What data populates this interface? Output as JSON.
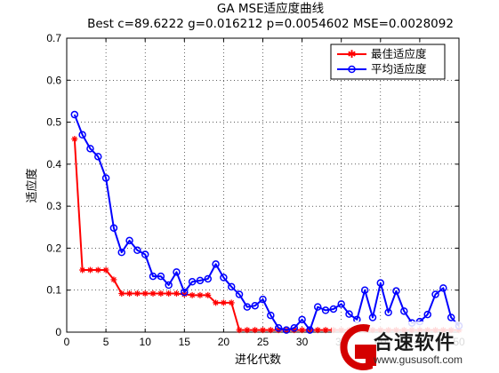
{
  "chart_data": {
    "type": "line",
    "title_line1": "GA MSE适应度曲线",
    "title_line2": "Best c=89.6222 g=0.016212 p=0.0054602 MSE=0.0028092",
    "xlabel": "进化代数",
    "ylabel": "适应度",
    "xlim": [
      0,
      50
    ],
    "ylim": [
      0,
      0.7
    ],
    "xticks": [
      0,
      5,
      10,
      15,
      20,
      25,
      30,
      35,
      40,
      45,
      50
    ],
    "yticks": [
      0,
      0.1,
      0.2,
      0.3,
      0.4,
      0.5,
      0.6,
      0.7
    ],
    "grid": true,
    "legend_position": "top-right",
    "series": [
      {
        "name": "最佳适应度",
        "color": "#ff0000",
        "marker": "star",
        "x": [
          1,
          2,
          3,
          4,
          5,
          6,
          7,
          8,
          9,
          10,
          11,
          12,
          13,
          14,
          15,
          16,
          17,
          18,
          19,
          20,
          21,
          22,
          23,
          24,
          25,
          26,
          27,
          28,
          29,
          30,
          31,
          32,
          33,
          34,
          35,
          36,
          37,
          38,
          39,
          40,
          41,
          42,
          43,
          44,
          45,
          46,
          47,
          48,
          49,
          50
        ],
        "values": [
          0.46,
          0.148,
          0.148,
          0.148,
          0.148,
          0.125,
          0.092,
          0.092,
          0.092,
          0.092,
          0.092,
          0.092,
          0.092,
          0.092,
          0.09,
          0.088,
          0.088,
          0.088,
          0.07,
          0.07,
          0.07,
          0.005,
          0.005,
          0.005,
          0.005,
          0.005,
          0.005,
          0.005,
          0.005,
          0.005,
          0.005,
          0.005,
          0.005,
          0.005,
          0.005,
          0.005,
          0.005,
          0.005,
          0.005,
          0.005,
          0.005,
          0.005,
          0.005,
          0.005,
          0.005,
          0.005,
          0.005,
          0.005,
          0.005,
          0.005
        ]
      },
      {
        "name": "平均适应度",
        "color": "#0000ff",
        "marker": "circle",
        "x": [
          1,
          2,
          3,
          4,
          5,
          6,
          7,
          8,
          9,
          10,
          11,
          12,
          13,
          14,
          15,
          16,
          17,
          18,
          19,
          20,
          21,
          22,
          23,
          24,
          25,
          26,
          27,
          28,
          29,
          30,
          31,
          32,
          33,
          34,
          35,
          36,
          37,
          38,
          39,
          40,
          41,
          42,
          43,
          44,
          45,
          46,
          47,
          48,
          49,
          50
        ],
        "values": [
          0.518,
          0.47,
          0.437,
          0.418,
          0.367,
          0.248,
          0.19,
          0.218,
          0.195,
          0.185,
          0.133,
          0.133,
          0.112,
          0.143,
          0.095,
          0.12,
          0.123,
          0.127,
          0.162,
          0.13,
          0.108,
          0.09,
          0.06,
          0.063,
          0.078,
          0.04,
          0.01,
          0.005,
          0.01,
          0.03,
          0.005,
          0.06,
          0.052,
          0.055,
          0.067,
          0.043,
          0.03,
          0.1,
          0.035,
          0.117,
          0.047,
          0.098,
          0.05,
          0.022,
          0.025,
          0.042,
          0.09,
          0.105,
          0.035,
          0.015
        ]
      }
    ]
  },
  "watermark": {
    "brand": "合速软件",
    "url": "www.gususoft.com"
  }
}
